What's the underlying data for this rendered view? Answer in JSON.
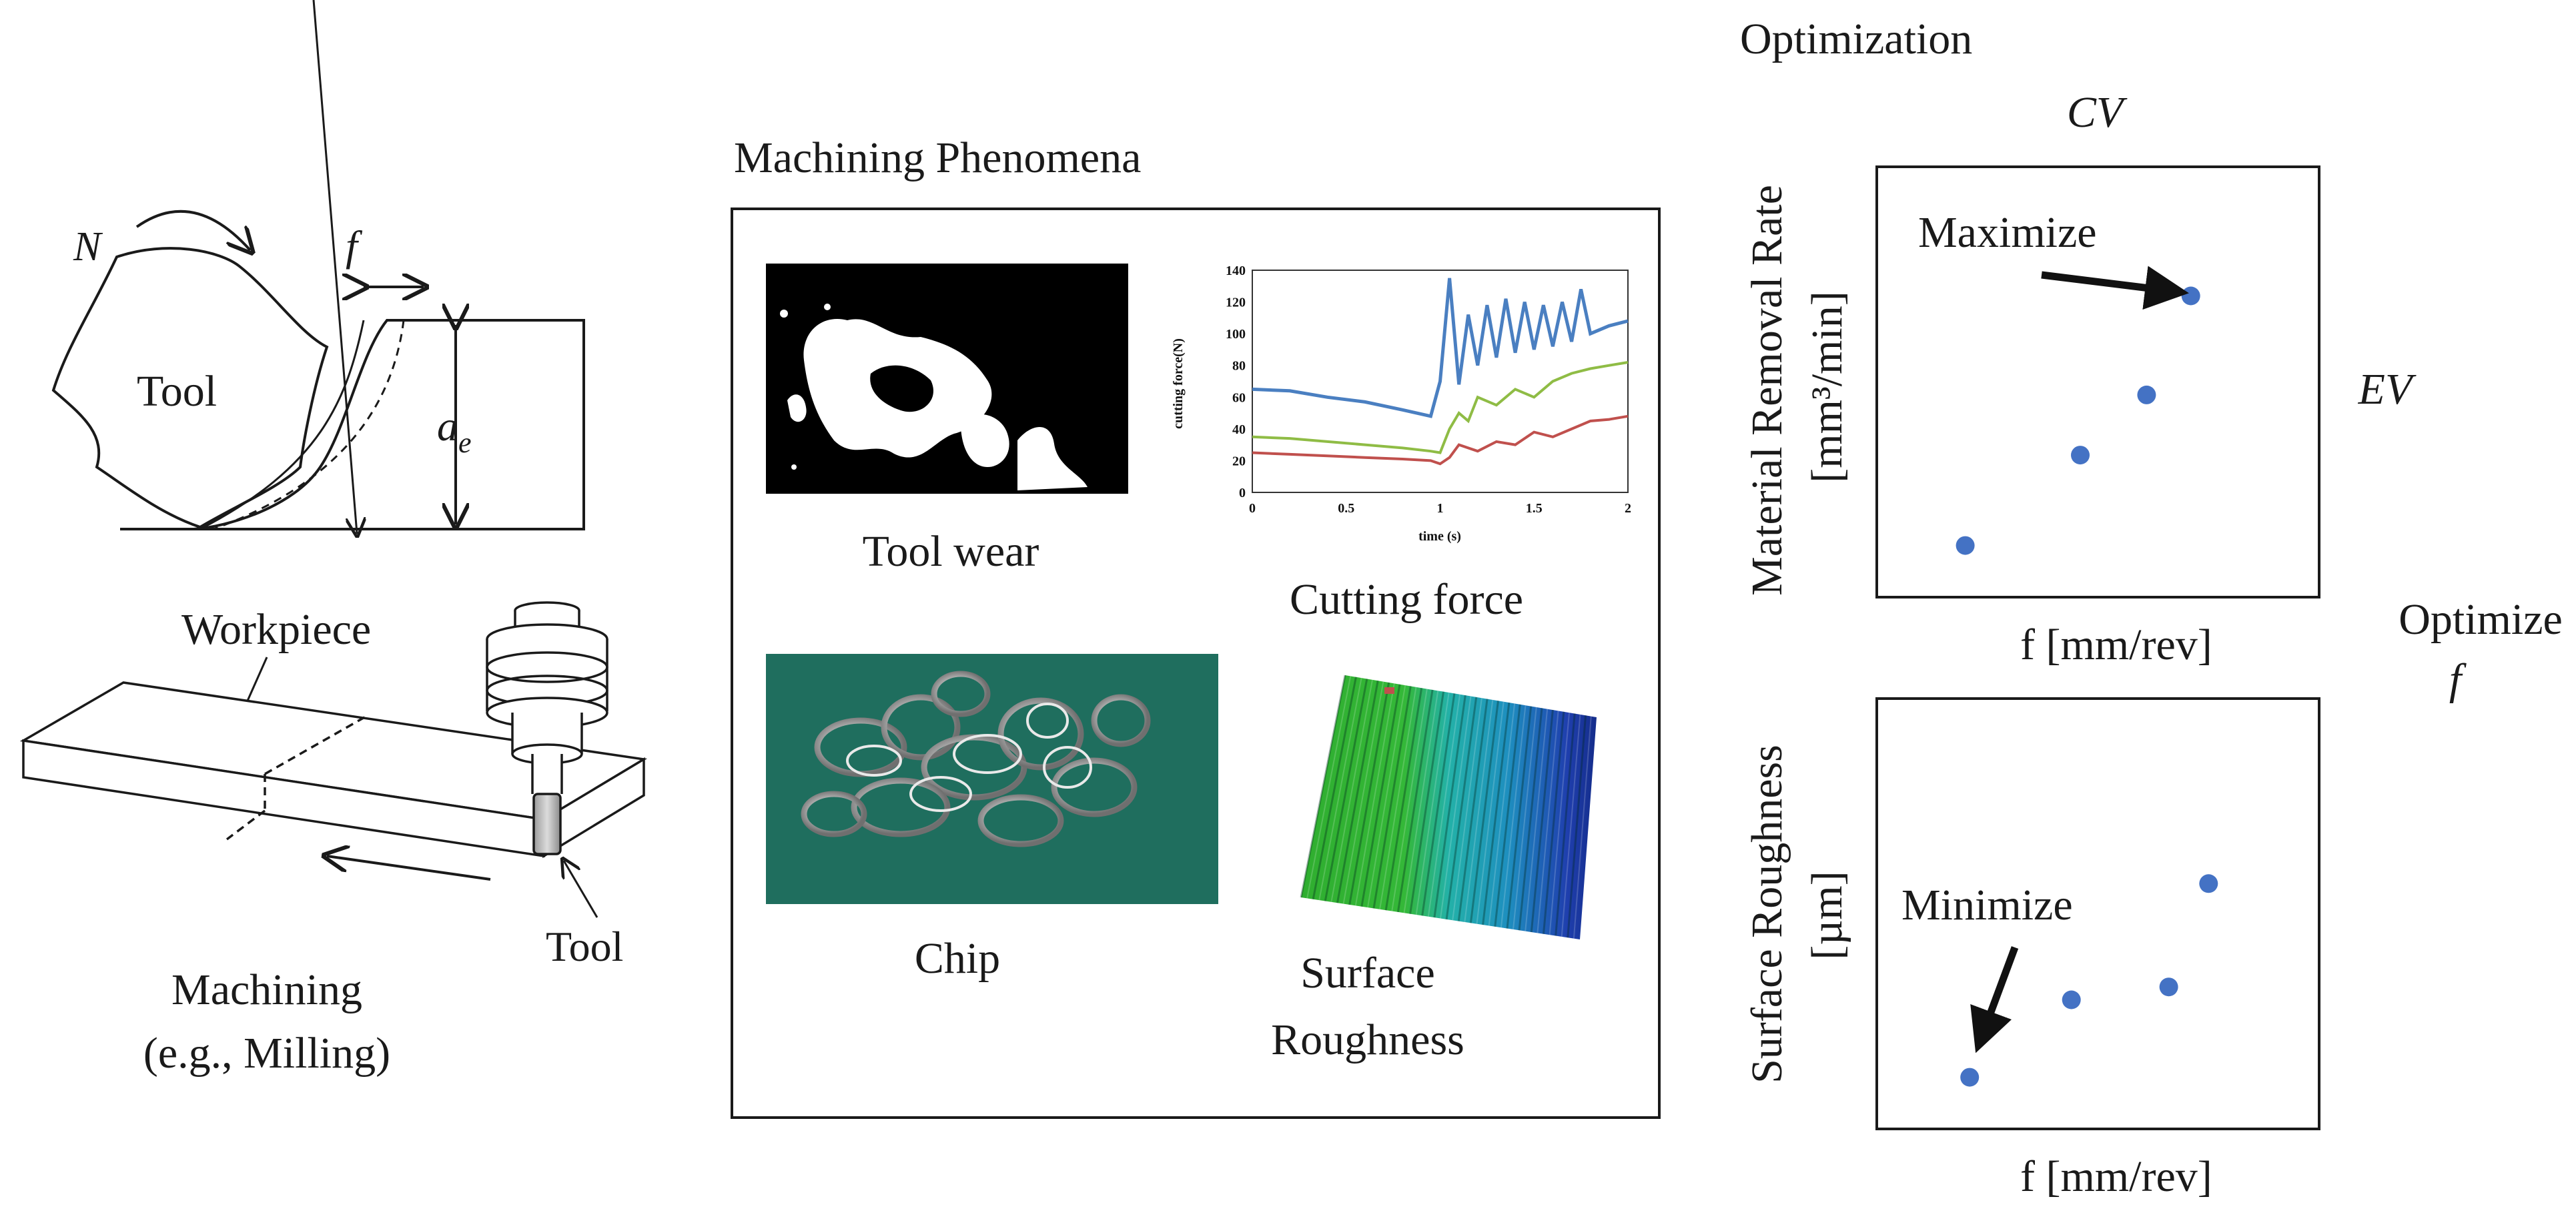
{
  "machining": {
    "spindle_label": "N",
    "feed_label": "f",
    "tool_label": "Tool",
    "depth_label_main": "a",
    "depth_label_sub": "e",
    "workpiece_label": "Workpiece",
    "tool_label_bottom": "Tool",
    "caption_line1": "Machining",
    "caption_line2": "(e.g., Milling)"
  },
  "phenomena": {
    "title": "Machining Phenomena",
    "tool_wear_label": "Tool wear",
    "cutting_force_label": "Cutting force",
    "chip_label": "Chip",
    "surface_label_line1": "Surface",
    "surface_label_line2": "Roughness"
  },
  "chart_data": [
    {
      "type": "line",
      "title": "",
      "xlabel": "time (s)",
      "ylabel": "cutting force(N)",
      "xlim": [
        0,
        2
      ],
      "ylim": [
        0,
        140
      ],
      "xticks": [
        "0",
        "0.5",
        "1",
        "1.5",
        "2"
      ],
      "yticks": [
        "0",
        "20",
        "40",
        "60",
        "80",
        "100",
        "120",
        "140"
      ],
      "series": [
        {
          "color": "#4a7fc1",
          "x": [
            0,
            0.2,
            0.4,
            0.6,
            0.8,
            0.95,
            1.0,
            1.05,
            1.1,
            1.15,
            1.2,
            1.25,
            1.3,
            1.35,
            1.4,
            1.45,
            1.5,
            1.55,
            1.6,
            1.65,
            1.7,
            1.75,
            1.8,
            1.9,
            2.0
          ],
          "y": [
            65,
            64,
            60,
            57,
            52,
            48,
            70,
            135,
            68,
            112,
            80,
            118,
            85,
            122,
            88,
            120,
            90,
            118,
            92,
            120,
            95,
            128,
            100,
            105,
            108
          ]
        },
        {
          "color": "#8fbc45",
          "x": [
            0,
            0.2,
            0.4,
            0.6,
            0.8,
            0.95,
            1.0,
            1.05,
            1.1,
            1.15,
            1.2,
            1.3,
            1.4,
            1.5,
            1.6,
            1.7,
            1.8,
            1.9,
            2.0
          ],
          "y": [
            35,
            34,
            32,
            30,
            28,
            26,
            25,
            40,
            50,
            45,
            60,
            55,
            65,
            60,
            70,
            75,
            78,
            80,
            82
          ]
        },
        {
          "color": "#c0504d",
          "x": [
            0,
            0.2,
            0.4,
            0.6,
            0.8,
            0.95,
            1.0,
            1.05,
            1.1,
            1.2,
            1.3,
            1.4,
            1.5,
            1.6,
            1.7,
            1.8,
            1.9,
            2.0
          ],
          "y": [
            25,
            24,
            23,
            22,
            21,
            20,
            18,
            22,
            30,
            26,
            32,
            30,
            38,
            35,
            40,
            45,
            46,
            48
          ]
        }
      ]
    },
    {
      "type": "scatter",
      "title": "",
      "xlabel": "f [mm/rev]",
      "ylabel_line1": "Material Removal Rate",
      "ylabel_line2": "[mm³/min]",
      "annotation": "Maximize",
      "xlim": [
        0,
        1
      ],
      "ylim": [
        0,
        1
      ],
      "points": [
        [
          0.2,
          0.12
        ],
        [
          0.46,
          0.33
        ],
        [
          0.61,
          0.47
        ],
        [
          0.71,
          0.7
        ]
      ]
    },
    {
      "type": "scatter",
      "title": "",
      "xlabel": "f [mm/rev]",
      "ylabel_line1": "Surface Roughness",
      "ylabel_line2": "[µm]",
      "annotation": "Minimize",
      "xlim": [
        0,
        1
      ],
      "ylim": [
        0,
        1
      ],
      "points": [
        [
          0.21,
          0.12
        ],
        [
          0.44,
          0.3
        ],
        [
          0.66,
          0.33
        ],
        [
          0.75,
          0.57
        ]
      ]
    }
  ],
  "optimization": {
    "title": "Optimization",
    "cv_label": "CV",
    "ev_label": "EV",
    "optimize_label": "Optimize",
    "optimize_var": "f"
  },
  "colors": {
    "point": "#4472c4",
    "ink": "#1a1a1a",
    "chip_bg": "#1f6e5e",
    "surface_green": "#2fae2f",
    "surface_blue": "#1f3fae"
  },
  "icons": [
    "rotation-arrow-icon",
    "milling-tool-icon",
    "spindle-icon",
    "workpiece-block-icon"
  ]
}
